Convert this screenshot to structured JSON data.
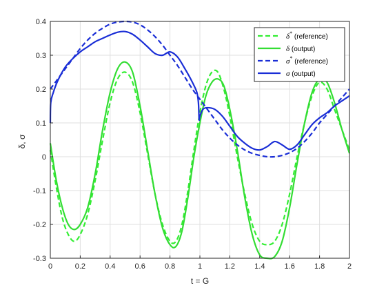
{
  "chart_data": {
    "type": "line",
    "title": "",
    "xlabel": "t = G",
    "ylabel": "δ, σ",
    "xlim": [
      0,
      2
    ],
    "ylim": [
      -0.3,
      0.4
    ],
    "xticks": [
      "0",
      "0.2",
      "0.4",
      "0.6",
      "0.8",
      "1",
      "1.2",
      "1.4",
      "1.6",
      "1.8",
      "2"
    ],
    "yticks": [
      "-0.3",
      "-0.2",
      "-0.1",
      "0",
      "0.1",
      "0.2",
      "0.3",
      "0.4"
    ],
    "grid": true,
    "legend_position": "top-right",
    "series": [
      {
        "name": "δ* (reference)",
        "label_main": "δ",
        "label_sup": "*",
        "label_rest": " (reference)",
        "color": "#33ee33",
        "style": "dashed",
        "x": [
          0,
          0.04,
          0.08,
          0.12,
          0.16,
          0.2,
          0.25,
          0.3,
          0.35,
          0.4,
          0.45,
          0.5,
          0.55,
          0.6,
          0.65,
          0.7,
          0.75,
          0.8,
          0.84,
          0.88,
          0.92,
          0.96,
          1.0,
          1.04,
          1.08,
          1.12,
          1.16,
          1.2,
          1.25,
          1.3,
          1.35,
          1.4,
          1.45,
          1.5,
          1.55,
          1.6,
          1.65,
          1.7,
          1.75,
          1.8,
          1.85,
          1.9,
          1.95,
          2.0
        ],
        "y": [
          0.02,
          -0.09,
          -0.18,
          -0.23,
          -0.25,
          -0.23,
          -0.17,
          -0.07,
          0.05,
          0.16,
          0.23,
          0.25,
          0.22,
          0.13,
          0.01,
          -0.11,
          -0.2,
          -0.25,
          -0.25,
          -0.2,
          -0.1,
          0.02,
          0.13,
          0.21,
          0.25,
          0.25,
          0.2,
          0.12,
          0.0,
          -0.11,
          -0.2,
          -0.25,
          -0.26,
          -0.25,
          -0.2,
          -0.11,
          0.0,
          0.1,
          0.18,
          0.22,
          0.2,
          0.14,
          0.08,
          0.02
        ]
      },
      {
        "name": "δ (output)",
        "label_main": "δ",
        "label_sup": "",
        "label_rest": " (output)",
        "color": "#33dd33",
        "style": "solid",
        "x": [
          0,
          0.04,
          0.08,
          0.12,
          0.16,
          0.2,
          0.25,
          0.3,
          0.35,
          0.4,
          0.45,
          0.5,
          0.55,
          0.6,
          0.65,
          0.7,
          0.75,
          0.8,
          0.84,
          0.88,
          0.92,
          0.96,
          1.0,
          1.04,
          1.08,
          1.12,
          1.16,
          1.2,
          1.25,
          1.3,
          1.35,
          1.4,
          1.45,
          1.5,
          1.55,
          1.6,
          1.65,
          1.7,
          1.75,
          1.8,
          1.85,
          1.9,
          1.95,
          2.0
        ],
        "y": [
          0.04,
          -0.07,
          -0.15,
          -0.2,
          -0.215,
          -0.2,
          -0.15,
          -0.05,
          0.08,
          0.19,
          0.26,
          0.28,
          0.25,
          0.15,
          0.02,
          -0.11,
          -0.21,
          -0.26,
          -0.265,
          -0.22,
          -0.12,
          0.0,
          0.1,
          0.18,
          0.22,
          0.23,
          0.21,
          0.14,
          0.02,
          -0.12,
          -0.23,
          -0.29,
          -0.3,
          -0.295,
          -0.25,
          -0.15,
          -0.02,
          0.1,
          0.19,
          0.23,
          0.22,
          0.16,
          0.08,
          0.01
        ]
      },
      {
        "name": "σ* (reference)",
        "label_main": "σ",
        "label_sup": "*",
        "label_rest": " (reference)",
        "color": "#1a2ed6",
        "style": "dashed",
        "x": [
          0,
          0.05,
          0.1,
          0.15,
          0.2,
          0.25,
          0.3,
          0.35,
          0.4,
          0.45,
          0.5,
          0.55,
          0.6,
          0.65,
          0.7,
          0.75,
          0.8,
          0.85,
          0.9,
          0.95,
          1.0,
          1.05,
          1.1,
          1.15,
          1.2,
          1.25,
          1.3,
          1.35,
          1.4,
          1.45,
          1.5,
          1.55,
          1.6,
          1.65,
          1.7,
          1.75,
          1.8,
          1.85,
          1.9,
          1.95,
          2.0
        ],
        "y": [
          0.2,
          0.23,
          0.26,
          0.29,
          0.32,
          0.345,
          0.365,
          0.38,
          0.392,
          0.398,
          0.4,
          0.398,
          0.39,
          0.375,
          0.355,
          0.33,
          0.3,
          0.27,
          0.235,
          0.2,
          0.17,
          0.14,
          0.11,
          0.08,
          0.055,
          0.035,
          0.02,
          0.01,
          0.004,
          0.0,
          0.0,
          0.004,
          0.012,
          0.025,
          0.045,
          0.07,
          0.1,
          0.125,
          0.15,
          0.175,
          0.2
        ]
      },
      {
        "name": "σ (output)",
        "label_main": "σ",
        "label_sup": "",
        "label_rest": " (output)",
        "color": "#1a2ed6",
        "style": "solid",
        "x": [
          0,
          0.003,
          0.02,
          0.05,
          0.1,
          0.15,
          0.2,
          0.25,
          0.3,
          0.35,
          0.4,
          0.45,
          0.5,
          0.55,
          0.6,
          0.65,
          0.7,
          0.75,
          0.8,
          0.85,
          0.9,
          0.95,
          0.98,
          0.99,
          0.995,
          1.0,
          1.02,
          1.05,
          1.1,
          1.15,
          1.2,
          1.25,
          1.3,
          1.35,
          1.4,
          1.45,
          1.5,
          1.55,
          1.6,
          1.65,
          1.7,
          1.75,
          1.8,
          1.85,
          1.9,
          1.95,
          2.0
        ],
        "y": [
          0.1,
          0.16,
          0.19,
          0.225,
          0.265,
          0.29,
          0.31,
          0.325,
          0.34,
          0.35,
          0.36,
          0.368,
          0.37,
          0.362,
          0.345,
          0.325,
          0.305,
          0.3,
          0.31,
          0.295,
          0.26,
          0.22,
          0.19,
          0.16,
          0.11,
          0.12,
          0.14,
          0.145,
          0.14,
          0.12,
          0.09,
          0.06,
          0.04,
          0.025,
          0.02,
          0.03,
          0.045,
          0.035,
          0.022,
          0.035,
          0.065,
          0.095,
          0.115,
          0.13,
          0.15,
          0.165,
          0.18
        ]
      }
    ]
  }
}
